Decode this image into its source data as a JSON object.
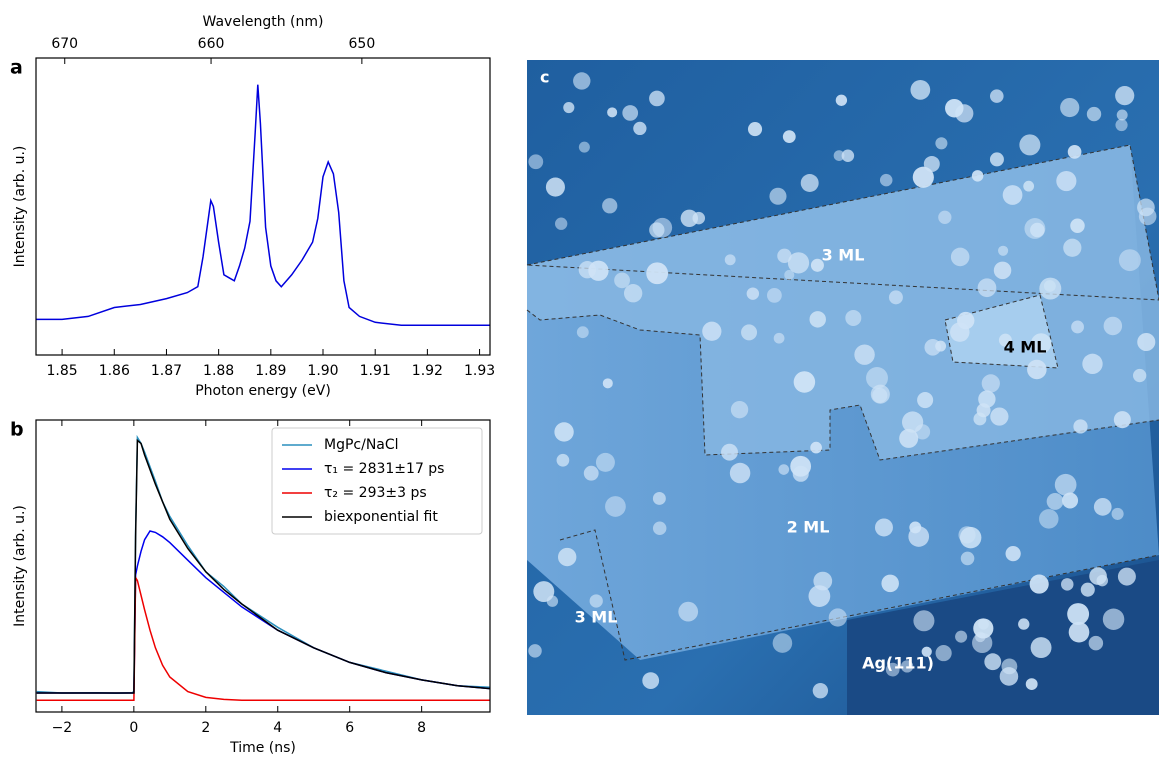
{
  "chart_data": [
    {
      "type": "line",
      "panel_label": "a",
      "xlabel": "Photon energy (eV)",
      "ylabel": "Intensity (arb. u.)",
      "x2label": "Wavelength (nm)",
      "x2ticks": [
        670,
        660,
        650
      ],
      "xlim": [
        1.845,
        1.932
      ],
      "ylim": [
        0,
        1
      ],
      "xticks": [
        1.85,
        1.86,
        1.87,
        1.88,
        1.89,
        {
          "value": 1.9,
          "label": "1.90"
        },
        1.91,
        1.92,
        1.93
      ],
      "color": "#0000dd",
      "x": [
        1.845,
        1.85,
        1.855,
        1.86,
        1.865,
        1.87,
        1.874,
        1.876,
        1.877,
        1.8785,
        1.879,
        1.88,
        1.881,
        1.882,
        1.883,
        1.884,
        1.885,
        1.886,
        1.887,
        1.8875,
        1.888,
        1.889,
        1.89,
        1.891,
        1.892,
        1.894,
        1.896,
        1.898,
        1.899,
        1.9,
        1.901,
        1.902,
        1.903,
        1.904,
        1.905,
        1.907,
        1.91,
        1.915,
        1.92,
        1.925,
        1.93,
        1.932
      ],
      "values": [
        0.12,
        0.12,
        0.13,
        0.16,
        0.17,
        0.19,
        0.21,
        0.23,
        0.33,
        0.52,
        0.5,
        0.38,
        0.27,
        0.26,
        0.25,
        0.3,
        0.36,
        0.45,
        0.75,
        0.91,
        0.78,
        0.43,
        0.3,
        0.25,
        0.23,
        0.27,
        0.32,
        0.38,
        0.46,
        0.6,
        0.65,
        0.61,
        0.48,
        0.25,
        0.16,
        0.13,
        0.11,
        0.1,
        0.1,
        0.1,
        0.1,
        0.1
      ]
    },
    {
      "type": "line",
      "panel_label": "b",
      "xlabel": "Time (ns)",
      "ylabel": "Intensity (arb. u.)",
      "xlim": [
        -2.72,
        9.9
      ],
      "ylim": [
        0,
        1
      ],
      "xticks": [
        {
          "value": -2,
          "label": "−2"
        },
        0,
        2,
        4,
        6,
        8
      ],
      "legend": "upper right",
      "x": [
        -2.7,
        -2,
        -1,
        -0.5,
        -0.05,
        0,
        0.05,
        0.1,
        0.2,
        0.3,
        0.45,
        0.6,
        0.8,
        1,
        1.5,
        2,
        2.5,
        3,
        4,
        5,
        6,
        7,
        8,
        9,
        9.9
      ],
      "series": [
        {
          "name": "MgPc/NaCl",
          "color": "#2a8fbd",
          "values": [
            0.07,
            0.065,
            0.066,
            0.064,
            0.066,
            0.07,
            0.62,
            0.94,
            0.92,
            0.89,
            0.84,
            0.79,
            0.72,
            0.67,
            0.57,
            0.48,
            0.43,
            0.37,
            0.29,
            0.22,
            0.17,
            0.14,
            0.11,
            0.09,
            0.085
          ]
        },
        {
          "name": "τ₁ = 2831±17 ps",
          "color": "#0000ee",
          "values": [
            0.065,
            0.065,
            0.065,
            0.065,
            0.065,
            0.065,
            0.47,
            0.5,
            0.55,
            0.59,
            0.62,
            0.615,
            0.6,
            0.58,
            0.52,
            0.46,
            0.41,
            0.36,
            0.28,
            0.22,
            0.17,
            0.135,
            0.11,
            0.09,
            0.08
          ]
        },
        {
          "name": "τ₂ = 293±3 ps",
          "color": "#ee0000",
          "values": [
            0.04,
            0.04,
            0.04,
            0.04,
            0.04,
            0.04,
            0.46,
            0.45,
            0.4,
            0.35,
            0.28,
            0.22,
            0.16,
            0.12,
            0.07,
            0.05,
            0.043,
            0.04,
            0.04,
            0.04,
            0.04,
            0.04,
            0.04,
            0.04,
            0.04
          ]
        },
        {
          "name": "biexponential fit",
          "color": "#000000",
          "values": [
            0.065,
            0.065,
            0.065,
            0.065,
            0.065,
            0.065,
            0.6,
            0.93,
            0.92,
            0.88,
            0.83,
            0.78,
            0.72,
            0.66,
            0.56,
            0.48,
            0.42,
            0.37,
            0.28,
            0.22,
            0.17,
            0.135,
            0.11,
            0.09,
            0.08
          ]
        }
      ]
    }
  ],
  "image": {
    "panel_label": "c",
    "labels": [
      "3 ML",
      "4 ML",
      "2 ML",
      "3 ML",
      "Ag(111)"
    ]
  }
}
